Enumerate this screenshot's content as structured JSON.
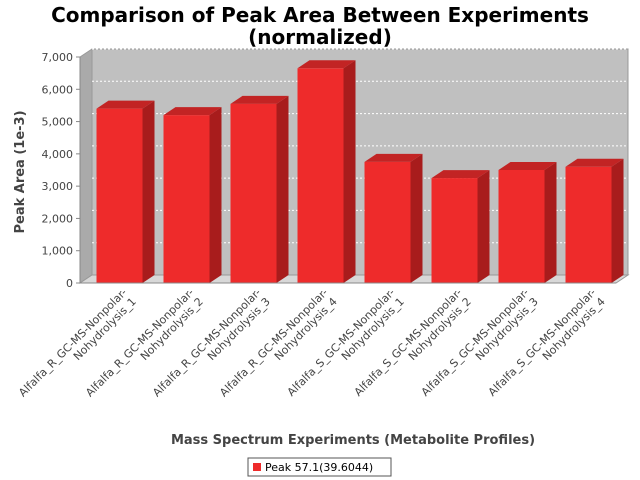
{
  "chart_data": {
    "type": "bar",
    "title_line1": "Comparison of Peak Area Between Experiments",
    "title_line2": "(normalized)",
    "xlabel": "Mass Spectrum Experiments (Metabolite Profiles)",
    "ylabel": "Peak Area (1e-3)",
    "ylim": [
      0,
      7000
    ],
    "yticks": [
      "0",
      "1,000",
      "2,000",
      "3,000",
      "4,000",
      "5,000",
      "6,000",
      "7,000"
    ],
    "categories": [
      [
        "Alfalfa_R_GC-MS-Nonpolar-",
        "Nohydrolysis_1"
      ],
      [
        "Alfalfa_R_GC-MS-Nonpolar-",
        "Nohydrolysis_2"
      ],
      [
        "Alfalfa_R_GC-MS-Nonpolar-",
        "Nohydrolysis_3"
      ],
      [
        "Alfalfa_R_GC-MS-Nonpolar-",
        "Nohydrolysis_4"
      ],
      [
        "Alfalfa_S_GC-MS-Nonpolar-",
        "Nohydrolysis_1"
      ],
      [
        "Alfalfa_S_GC-MS-Nonpolar-",
        "Nohydrolysis_2"
      ],
      [
        "Alfalfa_S_GC-MS-Nonpolar-",
        "Nohydrolysis_3"
      ],
      [
        "Alfalfa_S_GC-MS-Nonpolar-",
        "Nohydrolysis_4"
      ]
    ],
    "series": [
      {
        "name": "Peak 57.1(39.6044)",
        "values": [
          5400,
          5200,
          5550,
          6650,
          3750,
          3250,
          3500,
          3600
        ]
      }
    ],
    "colors": {
      "bar": "#ee2b2b",
      "bar_side": "#a81c1c",
      "bar_top": "#c22424",
      "plot_bg": "#c0c0c0",
      "plot_floor": "#d8d8d8"
    },
    "grid": true,
    "legend_position": "bottom"
  }
}
